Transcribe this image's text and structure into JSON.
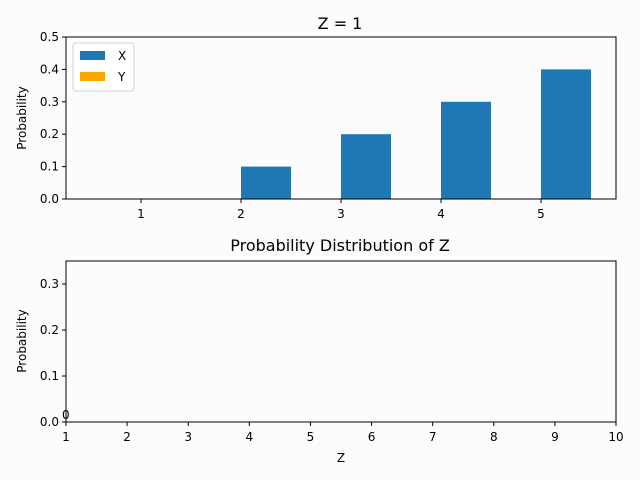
{
  "colors": {
    "series_x": "#1f77b4",
    "series_y": "#ffa500",
    "background": "#fcfcff",
    "axes": "#000000"
  },
  "chart_data": [
    {
      "type": "bar",
      "title": "Z = 1",
      "xlabel": "",
      "ylabel": "Probability",
      "categories": [
        "1",
        "2",
        "3",
        "4",
        "5"
      ],
      "x": [
        1,
        2,
        3,
        4,
        5
      ],
      "xlim": [
        0.25,
        5.75
      ],
      "ylim": [
        0,
        0.5
      ],
      "yticks": [
        "0.0",
        "0.1",
        "0.2",
        "0.3",
        "0.4",
        "0.5"
      ],
      "series": [
        {
          "name": "X",
          "color": "#1f77b4",
          "values": [
            0.0,
            0.1,
            0.2,
            0.3,
            0.4
          ]
        },
        {
          "name": "Y",
          "color": "#ffa500",
          "values": [
            0.0,
            0.0,
            0.0,
            0.0,
            0.0
          ]
        }
      ],
      "legend": "top-left",
      "grid": false
    },
    {
      "type": "bar",
      "title": "Probability Distribution of Z",
      "xlabel": "Z",
      "ylabel": "Probability",
      "x": [
        1,
        2,
        3,
        4,
        5,
        6,
        7,
        8,
        9,
        10
      ],
      "xticks": [
        "1",
        "2",
        "3",
        "4",
        "5",
        "6",
        "7",
        "8",
        "9",
        "10"
      ],
      "xlim": [
        1,
        10
      ],
      "ylim": [
        0,
        0.35
      ],
      "yticks": [
        "0.0",
        "0.1",
        "0.2",
        "0.3"
      ],
      "series": [],
      "annotations": [
        {
          "x": 1,
          "y": 0,
          "text": "0"
        }
      ],
      "legend": "none",
      "grid": false
    }
  ]
}
